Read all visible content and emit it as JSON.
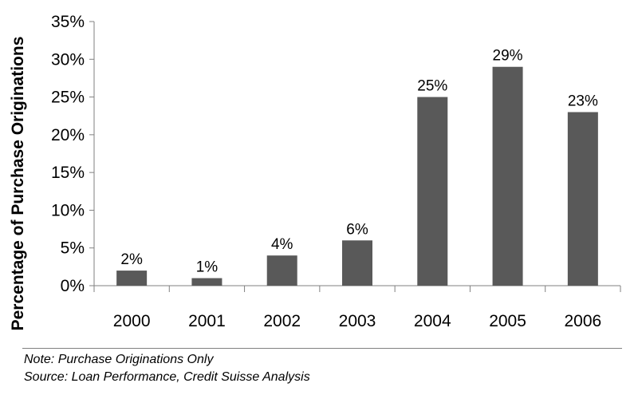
{
  "chart_data": {
    "type": "bar",
    "categories": [
      "2000",
      "2001",
      "2002",
      "2003",
      "2004",
      "2005",
      "2006"
    ],
    "values": [
      2,
      1,
      4,
      6,
      25,
      29,
      23
    ],
    "data_labels": [
      "2%",
      "1%",
      "4%",
      "6%",
      "25%",
      "29%",
      "23%"
    ],
    "title": "",
    "xlabel": "",
    "ylabel": "Percentage of Purchase Originations",
    "ylim": [
      0,
      35
    ],
    "yticks": [
      0,
      5,
      10,
      15,
      20,
      25,
      30,
      35
    ],
    "ytick_labels": [
      "0%",
      "5%",
      "10%",
      "15%",
      "20%",
      "25%",
      "30%",
      "35%"
    ],
    "grid": false,
    "legend": "none",
    "bar_color": "#595959"
  },
  "notes": {
    "note": "Note: Purchase Originations Only",
    "source": "Source: Loan Performance, Credit Suisse Analysis"
  }
}
